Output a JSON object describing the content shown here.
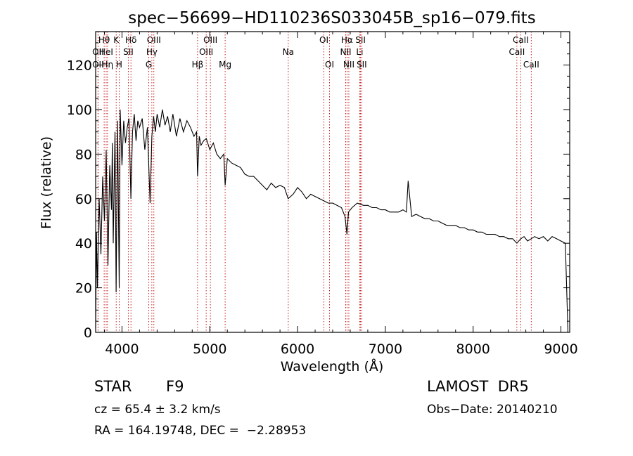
{
  "chart_data": {
    "type": "line",
    "title": "spec−56699−HD110236S033045B_sp16−079.fits",
    "xlabel": "Wavelength (Å)",
    "ylabel": "Flux (relative)",
    "xlim": [
      3700,
      9100
    ],
    "ylim": [
      0,
      135
    ],
    "x_ticks": [
      4000,
      5000,
      6000,
      7000,
      8000,
      9000
    ],
    "y_ticks": [
      0,
      20,
      40,
      60,
      80,
      100,
      120
    ],
    "grid": false,
    "series": [
      {
        "x": [
          3700,
          3710,
          3720,
          3740,
          3760,
          3780,
          3800,
          3820,
          3840,
          3860,
          3880,
          3890,
          3900,
          3920,
          3933,
          3950,
          3968,
          3980,
          4000,
          4020,
          4040,
          4060,
          4080,
          4101,
          4120,
          4140,
          4160,
          4180,
          4200,
          4230,
          4260,
          4290,
          4320,
          4340,
          4360,
          4380,
          4400,
          4430,
          4460,
          4490,
          4520,
          4550,
          4580,
          4620,
          4660,
          4700,
          4740,
          4780,
          4820,
          4850,
          4861,
          4880,
          4900,
          4930,
          4960,
          5000,
          5040,
          5080,
          5120,
          5160,
          5175,
          5200,
          5250,
          5300,
          5350,
          5400,
          5450,
          5500,
          5550,
          5600,
          5650,
          5700,
          5750,
          5800,
          5850,
          5893,
          5950,
          6000,
          6050,
          6100,
          6150,
          6200,
          6250,
          6300,
          6350,
          6400,
          6450,
          6500,
          6540,
          6563,
          6580,
          6620,
          6680,
          6750,
          6800,
          6850,
          6900,
          6950,
          7000,
          7050,
          7100,
          7150,
          7200,
          7240,
          7260,
          7300,
          7350,
          7400,
          7450,
          7500,
          7550,
          7600,
          7650,
          7700,
          7750,
          7800,
          7850,
          7900,
          7950,
          8000,
          8050,
          8100,
          8150,
          8200,
          8250,
          8300,
          8350,
          8400,
          8450,
          8498,
          8542,
          8580,
          8620,
          8662,
          8700,
          8750,
          8800,
          8850,
          8900,
          8950,
          9000,
          9050,
          9080
        ],
        "y": [
          2,
          45,
          20,
          60,
          35,
          70,
          50,
          82,
          30,
          75,
          55,
          85,
          40,
          90,
          18,
          95,
          20,
          100,
          75,
          95,
          85,
          92,
          96,
          60,
          90,
          98,
          86,
          95,
          92,
          96,
          82,
          92,
          58,
          88,
          97,
          90,
          98,
          92,
          100,
          93,
          97,
          90,
          98,
          88,
          96,
          90,
          95,
          92,
          88,
          90,
          70,
          88,
          84,
          86,
          87,
          82,
          85,
          80,
          78,
          80,
          66,
          78,
          76,
          75,
          74,
          71,
          70,
          70,
          68,
          66,
          64,
          67,
          65,
          66,
          65,
          60,
          62,
          65,
          63,
          60,
          62,
          61,
          60,
          59,
          58,
          58,
          57,
          56,
          52,
          44,
          54,
          56,
          58,
          57,
          57,
          56,
          56,
          55,
          55,
          54,
          54,
          54,
          55,
          54,
          68,
          52,
          53,
          52,
          51,
          51,
          50,
          50,
          49,
          48,
          48,
          48,
          47,
          47,
          46,
          46,
          45,
          45,
          44,
          44,
          44,
          43,
          43,
          42,
          42,
          40,
          42,
          43,
          41,
          42,
          43,
          42,
          43,
          41,
          43,
          42,
          41,
          40,
          0
        ]
      }
    ],
    "lines": [
      {
        "name": "Hθ",
        "wave": 3797,
        "row": 1
      },
      {
        "name": "OII",
        "wave": 3727,
        "row": 2
      },
      {
        "name": "OII",
        "wave": 3727,
        "row": 3
      },
      {
        "name": "HeI",
        "wave": 3820,
        "row": 2
      },
      {
        "name": "Hη",
        "wave": 3835,
        "row": 3
      },
      {
        "name": "K",
        "wave": 3934,
        "row": 1
      },
      {
        "name": "H",
        "wave": 3968,
        "row": 3
      },
      {
        "name": "Hδ",
        "wave": 4102,
        "row": 1
      },
      {
        "name": "SII",
        "wave": 4072,
        "row": 2
      },
      {
        "name": "OIII",
        "wave": 4363,
        "row": 1
      },
      {
        "name": "Hγ",
        "wave": 4340,
        "row": 2
      },
      {
        "name": "G",
        "wave": 4305,
        "row": 3
      },
      {
        "name": "Hβ",
        "wave": 4861,
        "row": 3
      },
      {
        "name": "OIII",
        "wave": 5007,
        "row": 1
      },
      {
        "name": "OIII",
        "wave": 4959,
        "row": 2
      },
      {
        "name": "Mg",
        "wave": 5175,
        "row": 3
      },
      {
        "name": "Na",
        "wave": 5894,
        "row": 2
      },
      {
        "name": "OI",
        "wave": 6300,
        "row": 1
      },
      {
        "name": "OI",
        "wave": 6364,
        "row": 3
      },
      {
        "name": "Hα",
        "wave": 6563,
        "row": 1
      },
      {
        "name": "NII",
        "wave": 6548,
        "row": 2
      },
      {
        "name": "NII",
        "wave": 6584,
        "row": 3
      },
      {
        "name": "SII",
        "wave": 6717,
        "row": 1
      },
      {
        "name": "Li",
        "wave": 6708,
        "row": 2
      },
      {
        "name": "SII",
        "wave": 6731,
        "row": 3
      },
      {
        "name": "CaII",
        "wave": 8542,
        "row": 1
      },
      {
        "name": "CaII",
        "wave": 8498,
        "row": 2
      },
      {
        "name": "CaII",
        "wave": 8662,
        "row": 3
      }
    ]
  },
  "info": {
    "object_class": "STAR",
    "subclass": "F9",
    "redshift": "cz = 65.4 ± 3.2 km/s",
    "coords": "RA = 164.19748, DEC =  −2.28953",
    "survey": "LAMOST  DR5",
    "obs_date": "Obs−Date: 20140210"
  }
}
